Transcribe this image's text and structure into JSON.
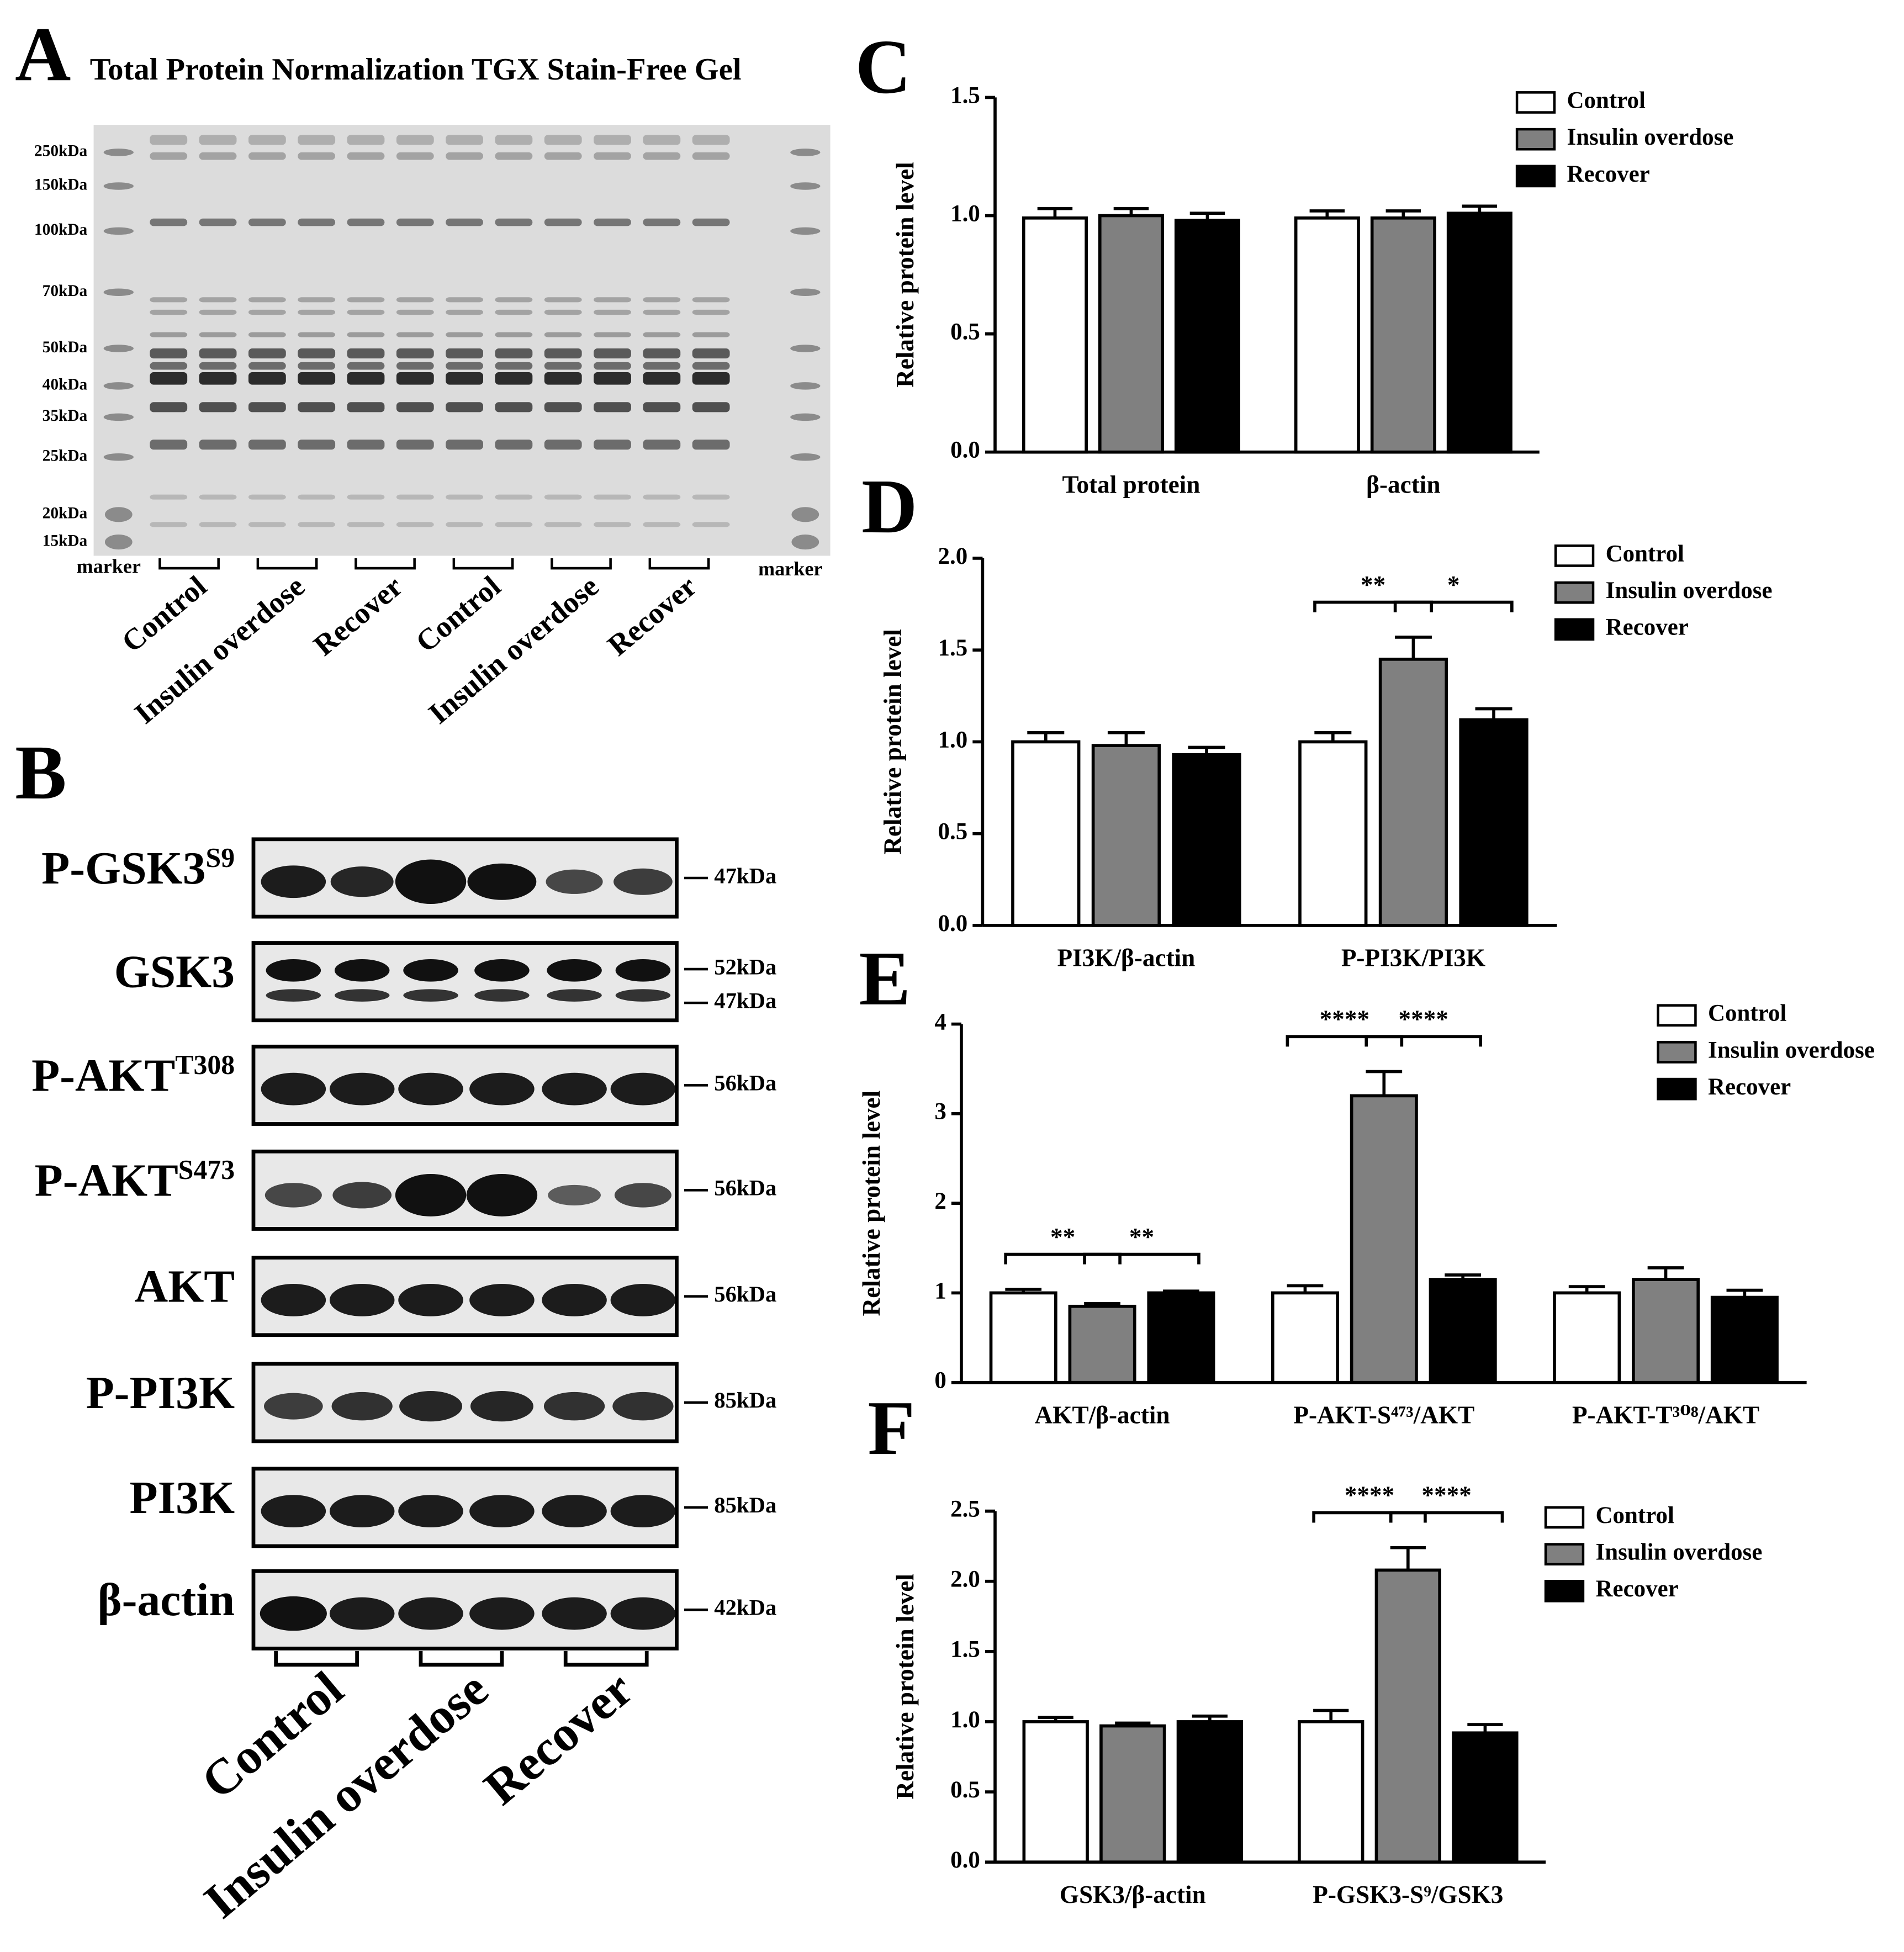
{
  "panel_a": {
    "label": "A",
    "title": "Total Protein Normalization TGX Stain-Free Gel",
    "markers": [
      "250kDa",
      "150kDa",
      "100kDa",
      "70kDa",
      "50kDa",
      "40kDa",
      "35kDa",
      "25kDa",
      "20kDa",
      "15kDa"
    ],
    "marker_label": "marker",
    "lanes": [
      "Control",
      "Insulin overdose",
      "Recover",
      "Control",
      "Insulin overdose",
      "Recover"
    ]
  },
  "panel_b": {
    "label": "B",
    "blots": [
      {
        "name": "P-GSK3",
        "sup": "S9",
        "sizes": [
          "47kDa"
        ]
      },
      {
        "name": "GSK3",
        "sizes": [
          "52kDa",
          "47kDa"
        ]
      },
      {
        "name": "P-AKT",
        "sup": "T308",
        "sizes": [
          "56kDa"
        ]
      },
      {
        "name": "P-AKT",
        "sup": "S473",
        "sizes": [
          "56kDa"
        ]
      },
      {
        "name": "AKT",
        "sizes": [
          "56kDa"
        ]
      },
      {
        "name": "P-PI3K",
        "sizes": [
          "85kDa"
        ]
      },
      {
        "name": "PI3K",
        "sizes": [
          "85kDa"
        ]
      },
      {
        "name": "β-actin",
        "sizes": [
          "42kDa"
        ]
      }
    ],
    "groups": [
      "Control",
      "Insulin overdose",
      "Recover"
    ]
  },
  "chart_data": [
    {
      "type": "bar",
      "panel": "C",
      "ylabel": "Relative protein level",
      "legend": "top-right",
      "categories": [
        "Total protein",
        "β-actin"
      ],
      "series": [
        {
          "name": "Control",
          "color": "#ffffff",
          "values": [
            0.99,
            0.99
          ],
          "errors": [
            0.04,
            0.03
          ]
        },
        {
          "name": "Insulin overdose",
          "color": "#808080",
          "values": [
            1.0,
            0.99
          ],
          "errors": [
            0.03,
            0.03
          ]
        },
        {
          "name": "Recover",
          "color": "#000000",
          "values": [
            0.98,
            1.01
          ],
          "errors": [
            0.03,
            0.03
          ]
        }
      ],
      "ylim": [
        0,
        1.5
      ],
      "yticks": [
        {
          "value": 0,
          "label": "0.0"
        },
        {
          "value": 0.5,
          "label": "0.5"
        },
        {
          "value": 1,
          "label": "1.0"
        },
        {
          "value": 1.5,
          "label": "1.5"
        }
      ]
    },
    {
      "type": "bar",
      "panel": "D",
      "ylabel": "Relative protein level",
      "legend": "top-right",
      "categories": [
        "PI3K/β-actin",
        "P-PI3K/PI3K"
      ],
      "series": [
        {
          "name": "Control",
          "color": "#ffffff",
          "values": [
            1.0,
            1.0
          ],
          "errors": [
            0.05,
            0.05
          ]
        },
        {
          "name": "Insulin overdose",
          "color": "#808080",
          "values": [
            0.98,
            1.45
          ],
          "errors": [
            0.07,
            0.12
          ]
        },
        {
          "name": "Recover",
          "color": "#000000",
          "values": [
            0.93,
            1.12
          ],
          "errors": [
            0.04,
            0.06
          ]
        }
      ],
      "ylim": [
        0,
        2
      ],
      "yticks": [
        {
          "value": 0,
          "label": "0.0"
        },
        {
          "value": 0.5,
          "label": "0.5"
        },
        {
          "value": 1,
          "label": "1.0"
        },
        {
          "value": 1.5,
          "label": "1.5"
        },
        {
          "value": 2,
          "label": "2.0"
        }
      ],
      "annotations": [
        {
          "text": "**",
          "category": "P-PI3K/PI3K",
          "series": [
            "Control",
            "Insulin overdose"
          ]
        },
        {
          "text": "*",
          "category": "P-PI3K/PI3K",
          "series": [
            "Insulin overdose",
            "Recover"
          ]
        }
      ]
    },
    {
      "type": "bar",
      "panel": "E",
      "ylabel": "Relative protein level",
      "legend": "top-right",
      "categories": [
        "AKT/β-actin",
        "P-AKT-S⁴⁷³/AKT",
        "P-AKT-T³⁰⁸/AKT"
      ],
      "series": [
        {
          "name": "Control",
          "color": "#ffffff",
          "values": [
            1.0,
            1.0,
            1.0
          ],
          "errors": [
            0.04,
            0.08,
            0.07
          ]
        },
        {
          "name": "Insulin overdose",
          "color": "#808080",
          "values": [
            0.85,
            3.2,
            1.15
          ],
          "errors": [
            0.03,
            0.27,
            0.13
          ]
        },
        {
          "name": "Recover",
          "color": "#000000",
          "values": [
            1.0,
            1.15,
            0.95
          ],
          "errors": [
            0.02,
            0.05,
            0.08
          ]
        }
      ],
      "ylim": [
        0,
        4
      ],
      "yticks": [
        0,
        1,
        2,
        3,
        4
      ],
      "annotations": [
        {
          "text": "**",
          "category": "AKT/β-actin",
          "series": [
            "Control",
            "Insulin overdose"
          ]
        },
        {
          "text": "**",
          "category": "AKT/β-actin",
          "series": [
            "Insulin overdose",
            "Recover"
          ]
        },
        {
          "text": "****",
          "category": "P-AKT-S⁴⁷³/AKT",
          "series": [
            "Control",
            "Insulin overdose"
          ]
        },
        {
          "text": "****",
          "category": "P-AKT-S⁴⁷³/AKT",
          "series": [
            "Insulin overdose",
            "Recover"
          ]
        }
      ]
    },
    {
      "type": "bar",
      "panel": "F",
      "ylabel": "Relative protein level",
      "legend": "top-right",
      "categories": [
        "GSK3/β-actin",
        "P-GSK3-S⁹/GSK3"
      ],
      "series": [
        {
          "name": "Control",
          "color": "#ffffff",
          "values": [
            1.0,
            1.0
          ],
          "errors": [
            0.03,
            0.08
          ]
        },
        {
          "name": "Insulin overdose",
          "color": "#808080",
          "values": [
            0.97,
            2.08
          ],
          "errors": [
            0.02,
            0.16
          ]
        },
        {
          "name": "Recover",
          "color": "#000000",
          "values": [
            1.0,
            0.92
          ],
          "errors": [
            0.04,
            0.06
          ]
        }
      ],
      "ylim": [
        0,
        2.5
      ],
      "yticks": [
        {
          "value": 0,
          "label": "0.0"
        },
        {
          "value": 0.5,
          "label": "0.5"
        },
        {
          "value": 1,
          "label": "1.0"
        },
        {
          "value": 1.5,
          "label": "1.5"
        },
        {
          "value": 2,
          "label": "2.0"
        },
        {
          "value": 2.5,
          "label": "2.5"
        }
      ],
      "annotations": [
        {
          "text": "****",
          "category": "P-GSK3-S⁹/GSK3",
          "series": [
            "Control",
            "Insulin overdose"
          ]
        },
        {
          "text": "****",
          "category": "P-GSK3-S⁹/GSK3",
          "series": [
            "Insulin overdose",
            "Recover"
          ]
        }
      ]
    }
  ]
}
